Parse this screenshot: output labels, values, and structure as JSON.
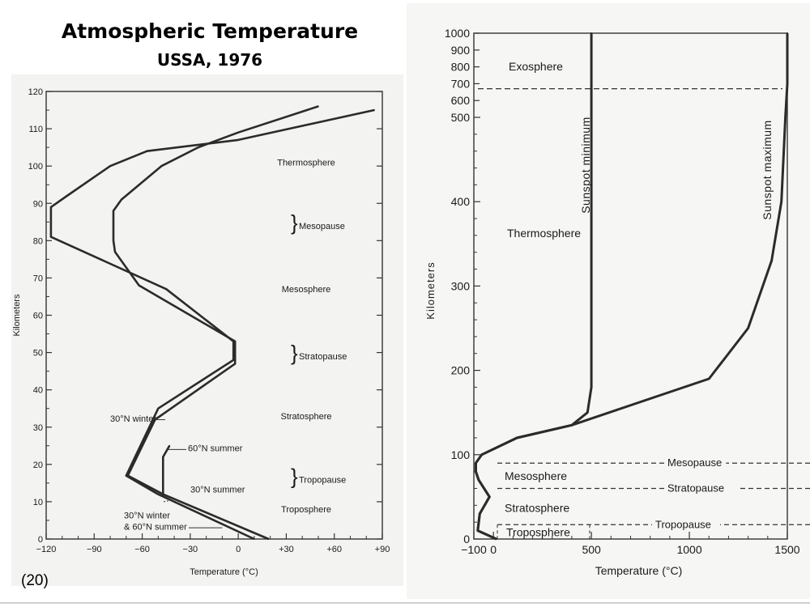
{
  "slide": {
    "title": "Atmospheric Temperature",
    "subtitle": "USSA, 1976",
    "number": "(20)"
  },
  "chart_data": [
    {
      "type": "line",
      "xlabel": "Temperature (°C)",
      "ylabel": "Kilometers",
      "xlim": [
        -120,
        90
      ],
      "ylim": [
        0,
        120
      ],
      "xticks": [
        -120,
        -90,
        -60,
        -30,
        0,
        30,
        60,
        90
      ],
      "xtick_labels": [
        "−120",
        "−90",
        "−60",
        "−30",
        "0",
        "+30",
        "+60",
        "+90"
      ],
      "yticks": [
        0,
        10,
        20,
        30,
        40,
        50,
        60,
        70,
        80,
        90,
        100,
        110,
        120
      ],
      "ytick_labels": [
        "0",
        "10",
        "20",
        "30",
        "40",
        "50",
        "60",
        "70",
        "80",
        "90",
        "100",
        "110",
        "120"
      ],
      "series": [
        {
          "name": "30°N summer",
          "points": [
            [
              19,
              0
            ],
            [
              -47,
              12
            ],
            [
              -69,
              17
            ],
            [
              -52,
              32
            ],
            [
              -2,
              47
            ],
            [
              -2,
              53
            ],
            [
              -62,
              68
            ],
            [
              -77,
              77
            ],
            [
              -78,
              80
            ],
            [
              -78,
              88
            ],
            [
              -73,
              91
            ],
            [
              -48,
              100
            ],
            [
              -25,
              105
            ],
            [
              0,
              109
            ],
            [
              50,
              116
            ]
          ]
        },
        {
          "name": "30°N winter",
          "points": [
            [
              10,
              0
            ],
            [
              -50,
              12
            ],
            [
              -70,
              17
            ],
            [
              -50,
              35
            ],
            [
              -3,
              48
            ],
            [
              -3,
              53
            ],
            [
              -45,
              67
            ],
            [
              -117,
              81
            ],
            [
              -117,
              89
            ],
            [
              -107,
              92
            ],
            [
              -80,
              100
            ],
            [
              -57,
              104
            ],
            [
              0,
              107
            ],
            [
              85,
              115
            ]
          ]
        },
        {
          "name": "60°N summer",
          "points": [
            [
              -47,
              12
            ],
            [
              -47,
              22
            ],
            [
              -43,
              25
            ]
          ]
        }
      ],
      "region_labels": [
        {
          "text": "Thermosphere",
          "y": 101
        },
        {
          "text": "Mesopause",
          "y": 84
        },
        {
          "text": "Mesosphere",
          "y": 67
        },
        {
          "text": "Stratopause",
          "y": 49
        },
        {
          "text": "Stratosphere",
          "y": 33
        },
        {
          "text": "Tropopause",
          "y": 16
        },
        {
          "text": "Troposphere",
          "y": 8
        }
      ],
      "annotations": [
        "30°N winter",
        "60°N summer",
        "30°N summer",
        "30°N winter",
        "& 60°N summer"
      ]
    },
    {
      "type": "line",
      "xlabel": "Temperature (°C)",
      "ylabel": "Kilometers",
      "xlim": [
        -100,
        1500
      ],
      "ylim": [
        0,
        1000
      ],
      "y_scale": "piecewise: linear 0–500 km, compressed 500–1000 km",
      "xticks": [
        -100,
        0,
        500,
        1000,
        1500
      ],
      "xtick_labels": [
        "−100",
        "0",
        "500",
        "1000",
        "1500"
      ],
      "yticks": [
        0,
        100,
        200,
        300,
        400,
        500,
        600,
        700,
        800,
        900,
        1000
      ],
      "ytick_labels": [
        "0",
        "100",
        "200",
        "300",
        "400",
        "500",
        "600",
        "700",
        "800",
        "900",
        "1000"
      ],
      "series": [
        {
          "name": "Sunspot minimum",
          "points": [
            [
              15,
              0
            ],
            [
              -80,
              10
            ],
            [
              -70,
              30
            ],
            [
              -20,
              50
            ],
            [
              -75,
              70
            ],
            [
              -90,
              80
            ],
            [
              -90,
              90
            ],
            [
              -60,
              100
            ],
            [
              120,
              120
            ],
            [
              400,
              135
            ],
            [
              480,
              150
            ],
            [
              500,
              180
            ],
            [
              500,
              300
            ],
            [
              500,
              400
            ],
            [
              500,
              500
            ],
            [
              500,
              1000
            ]
          ]
        },
        {
          "name": "Sunspot maximum",
          "points": [
            [
              15,
              0
            ],
            [
              -80,
              10
            ],
            [
              -70,
              30
            ],
            [
              -20,
              50
            ],
            [
              -75,
              70
            ],
            [
              -90,
              80
            ],
            [
              -90,
              90
            ],
            [
              -60,
              100
            ],
            [
              120,
              120
            ],
            [
              400,
              135
            ],
            [
              1100,
              190
            ],
            [
              1300,
              250
            ],
            [
              1420,
              330
            ],
            [
              1470,
              400
            ],
            [
              1490,
              500
            ],
            [
              1500,
              700
            ],
            [
              1500,
              1000
            ]
          ]
        }
      ],
      "level_lines": [
        {
          "label": "Mesopause",
          "km": 90
        },
        {
          "label": "Stratopause",
          "km": 60
        },
        {
          "label": "Tropopause",
          "km": 17
        },
        {
          "label": "",
          "km": 670
        }
      ],
      "region_labels": [
        "Exosphere",
        "Thermosphere",
        "Mesosphere",
        "Stratosphere",
        "Troposphere"
      ]
    }
  ]
}
